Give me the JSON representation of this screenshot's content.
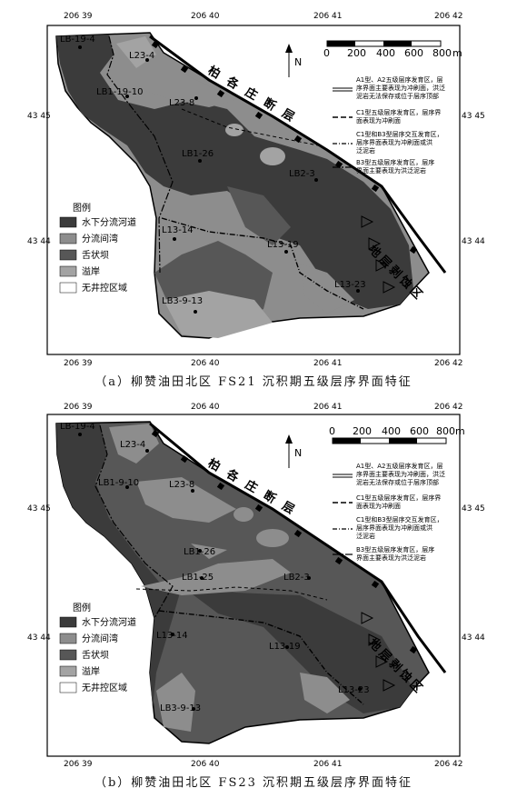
{
  "colors": {
    "channel": "#3b3b3b",
    "interchannel": "#8d8d8d",
    "tongue_bar": "#575757",
    "overbank": "#a3a3a3",
    "no_control": "#ffffff",
    "background": "#ffffff"
  },
  "grid": {
    "top_labels": [
      "206 39",
      "206 40",
      "206 41",
      "206 42"
    ],
    "bottom_labels": [
      "206 39",
      "206 40",
      "206 41",
      "206 42"
    ],
    "left_labels": [
      "43 45",
      "43 44"
    ],
    "right_labels": [
      "43 45",
      "43 44"
    ]
  },
  "north_label": "N",
  "scale_bar": {
    "ticks": [
      "0",
      "200",
      "400",
      "600",
      "800"
    ],
    "unit_a": "m",
    "last_b": "800m"
  },
  "fault_label": "柏 各 庄 断 层",
  "erosion_label": "地层剥蚀区",
  "legend": {
    "title": "图例",
    "items": [
      {
        "key": "channel",
        "label": "水下分流河道"
      },
      {
        "key": "interchannel",
        "label": "分流间湾"
      },
      {
        "key": "tongue_bar",
        "label": "舌状坝"
      },
      {
        "key": "overbank",
        "label": "溢岸"
      },
      {
        "key": "no_control",
        "label": "无井控区域"
      }
    ]
  },
  "boundary_legend": [
    {
      "lines": [
        "A1型、A2五级层序发育区，层",
        "序界面主要表现为冲刷面，洪泛",
        "泥岩无法保存或位于层序顶部"
      ]
    },
    {
      "lines": [
        "C1型五级层序发育区，层序界",
        "面表现为冲刷面"
      ]
    },
    {
      "lines": [
        "C1型和B3型层序交互发育区，",
        "层序界面表现为冲刷面或洪",
        "泛泥岩"
      ]
    },
    {
      "lines": [
        "B3型五级层序发育区，层序",
        "界面主要表现为洪泛泥岩"
      ]
    }
  ],
  "panel_a": {
    "caption": "（a）柳赞油田北区 FS21 沉积期五级层序界面特征",
    "wells": [
      "LB-19-4",
      "L23-4",
      "LB1-19-10",
      "L23-8",
      "LB1-26",
      "LB2-3",
      "L13-14",
      "L13-19",
      "L13-23",
      "LB3-9-13"
    ]
  },
  "panel_b": {
    "caption": "（b）柳赞油田北区 FS23 沉积期五级层序界面特征",
    "wells": [
      "LB-19-4",
      "L23-4",
      "LB1-9-10",
      "L23-8",
      "LB1-26",
      "LB1-25",
      "LB2-3",
      "L13-14",
      "L13-19",
      "L13-23",
      "LB3-9-13"
    ]
  }
}
